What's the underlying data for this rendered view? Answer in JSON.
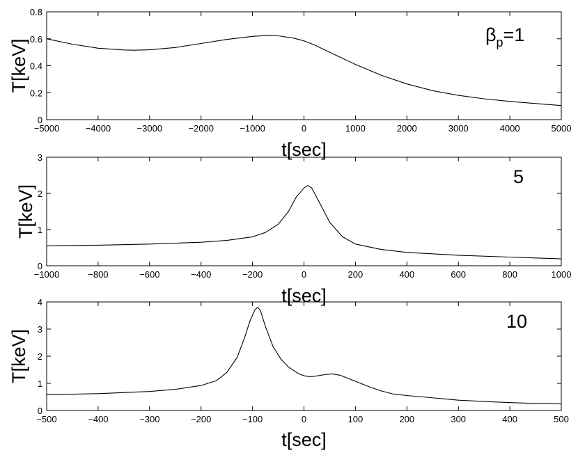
{
  "chart_data": [
    {
      "type": "line",
      "xlabel": "t[sec]",
      "ylabel": "T[keV]",
      "annotation": {
        "symbol": "β",
        "subscript": "p",
        "rest": "=1"
      },
      "xlim": [
        -5000,
        5000
      ],
      "ylim": [
        0,
        0.8
      ],
      "xticks": [
        -5000,
        -4000,
        -3000,
        -2000,
        -1000,
        0,
        1000,
        2000,
        3000,
        4000,
        5000
      ],
      "yticks": [
        0,
        0.2,
        0.4,
        0.6,
        0.8
      ],
      "ytick_labels": [
        "0",
        "0.2",
        "0.4",
        "0.6",
        "0.8"
      ],
      "grid": false,
      "series": [
        {
          "color": "#000000",
          "x": [
            -5000,
            -4500,
            -4000,
            -3500,
            -3300,
            -3000,
            -2500,
            -2000,
            -1500,
            -1000,
            -700,
            -500,
            -200,
            0,
            200,
            500,
            1000,
            1500,
            2000,
            2500,
            3000,
            3500,
            4000,
            4500,
            5000
          ],
          "y": [
            0.6,
            0.56,
            0.53,
            0.517,
            0.515,
            0.518,
            0.535,
            0.565,
            0.595,
            0.618,
            0.625,
            0.622,
            0.605,
            0.585,
            0.555,
            0.5,
            0.41,
            0.33,
            0.265,
            0.215,
            0.18,
            0.155,
            0.135,
            0.12,
            0.105
          ]
        }
      ]
    },
    {
      "type": "line",
      "xlabel": "t[sec]",
      "ylabel": "T[keV]",
      "annotation": {
        "text": "5"
      },
      "xlim": [
        -1000,
        1000
      ],
      "ylim": [
        0,
        3
      ],
      "xticks": [
        -1000,
        -800,
        -600,
        -400,
        -200,
        0,
        200,
        400,
        600,
        800,
        1000
      ],
      "yticks": [
        0,
        1,
        2,
        3
      ],
      "ytick_labels": [
        "0",
        "1",
        "2",
        "3"
      ],
      "grid": false,
      "series": [
        {
          "color": "#000000",
          "x": [
            -1000,
            -800,
            -600,
            -400,
            -300,
            -200,
            -150,
            -100,
            -60,
            -30,
            0,
            15,
            30,
            60,
            100,
            150,
            200,
            300,
            400,
            600,
            800,
            1000
          ],
          "y": [
            0.55,
            0.57,
            0.6,
            0.65,
            0.7,
            0.8,
            0.92,
            1.15,
            1.5,
            1.9,
            2.15,
            2.22,
            2.15,
            1.75,
            1.2,
            0.8,
            0.6,
            0.45,
            0.37,
            0.29,
            0.24,
            0.19
          ]
        }
      ]
    },
    {
      "type": "line",
      "xlabel": "t[sec]",
      "ylabel": "T[keV]",
      "annotation": {
        "text": "10"
      },
      "xlim": [
        -500,
        500
      ],
      "ylim": [
        0,
        4
      ],
      "xticks": [
        -500,
        -400,
        -300,
        -200,
        -100,
        0,
        100,
        200,
        300,
        400,
        500
      ],
      "yticks": [
        0,
        1,
        2,
        3,
        4
      ],
      "ytick_labels": [
        "0",
        "1",
        "2",
        "3",
        "4"
      ],
      "grid": false,
      "series": [
        {
          "color": "#000000",
          "x": [
            -500,
            -400,
            -300,
            -250,
            -200,
            -170,
            -150,
            -130,
            -115,
            -105,
            -95,
            -90,
            -85,
            -75,
            -60,
            -45,
            -30,
            -10,
            0,
            10,
            20,
            40,
            55,
            70,
            90,
            110,
            130,
            150,
            175,
            200,
            230,
            260,
            300,
            350,
            400,
            450,
            500
          ],
          "y": [
            0.58,
            0.62,
            0.7,
            0.78,
            0.92,
            1.1,
            1.4,
            1.95,
            2.7,
            3.3,
            3.72,
            3.8,
            3.7,
            3.1,
            2.35,
            1.9,
            1.6,
            1.35,
            1.28,
            1.25,
            1.26,
            1.32,
            1.35,
            1.3,
            1.15,
            1.0,
            0.85,
            0.72,
            0.6,
            0.55,
            0.5,
            0.45,
            0.38,
            0.33,
            0.29,
            0.26,
            0.24
          ]
        }
      ]
    }
  ]
}
